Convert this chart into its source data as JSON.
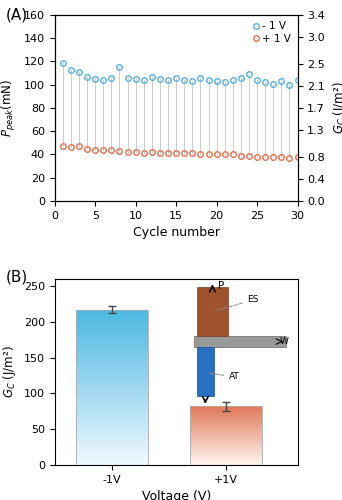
{
  "panel_A": {
    "xlabel": "Cycle number",
    "xlim": [
      0,
      30
    ],
    "ylim_left": [
      0,
      160
    ],
    "ylim_right": [
      0,
      3.4
    ],
    "yticks_left": [
      0,
      20,
      40,
      60,
      80,
      100,
      120,
      140,
      160
    ],
    "yticks_right_vals": [
      0.0,
      0.4,
      0.8,
      1.3,
      1.7,
      2.1,
      2.5,
      3.0,
      3.4
    ],
    "xticks": [
      0,
      5,
      10,
      15,
      20,
      25,
      30
    ],
    "blue_color": "#5aafe0",
    "orange_color": "#e07050",
    "line_color": "#cccccc",
    "legend_neg1v": "- 1 V",
    "legend_pos1v": "+ 1 V",
    "blue_data": [
      119,
      113,
      111,
      107,
      105,
      104,
      106,
      115,
      106,
      105,
      104,
      107,
      105,
      104,
      106,
      104,
      103,
      106,
      104,
      103,
      102,
      104,
      106,
      109,
      104,
      102,
      101,
      103,
      100,
      104
    ],
    "orange_data": [
      47,
      46,
      47,
      45,
      44,
      44,
      44,
      43,
      42,
      42,
      41,
      42,
      41,
      41,
      41,
      41,
      41,
      40,
      40,
      40,
      40,
      40,
      39,
      39,
      38,
      38,
      38,
      38,
      37,
      38
    ]
  },
  "panel_B": {
    "xlabel": "Voltage (V)",
    "ylabel": "G_C (J/m²)",
    "ylim": [
      0,
      260
    ],
    "yticks": [
      0,
      50,
      100,
      150,
      200,
      250
    ],
    "categories": [
      "-1V",
      "+1V"
    ],
    "values": [
      217,
      82
    ],
    "errors": [
      5,
      6
    ],
    "bar_width": 0.5,
    "bar_positions": [
      0.25,
      1.05
    ],
    "blue_top": "#4cb8e0",
    "blue_bot": "#f0f8ff",
    "orange_top": "#e07858",
    "orange_bot": "#fff5f0",
    "xlim": [
      -0.15,
      1.55
    ]
  }
}
